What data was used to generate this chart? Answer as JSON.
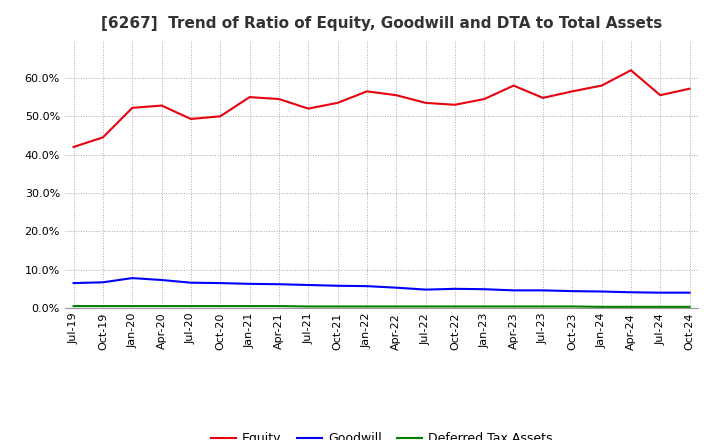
{
  "title": "[6267]  Trend of Ratio of Equity, Goodwill and DTA to Total Assets",
  "x_labels": [
    "Jul-19",
    "Oct-19",
    "Jan-20",
    "Apr-20",
    "Jul-20",
    "Oct-20",
    "Jan-21",
    "Apr-21",
    "Jul-21",
    "Oct-21",
    "Jan-22",
    "Apr-22",
    "Jul-22",
    "Oct-22",
    "Jan-23",
    "Apr-23",
    "Jul-23",
    "Oct-23",
    "Jan-24",
    "Apr-24",
    "Jul-24",
    "Oct-24"
  ],
  "equity": [
    0.42,
    0.445,
    0.522,
    0.528,
    0.493,
    0.5,
    0.55,
    0.545,
    0.52,
    0.535,
    0.565,
    0.555,
    0.535,
    0.53,
    0.545,
    0.58,
    0.548,
    0.565,
    0.58,
    0.62,
    0.555,
    0.572
  ],
  "goodwill": [
    0.065,
    0.067,
    0.078,
    0.073,
    0.066,
    0.065,
    0.063,
    0.062,
    0.06,
    0.058,
    0.057,
    0.053,
    0.048,
    0.05,
    0.049,
    0.046,
    0.046,
    0.044,
    0.043,
    0.041,
    0.04,
    0.04
  ],
  "dta": [
    0.005,
    0.005,
    0.005,
    0.005,
    0.005,
    0.005,
    0.005,
    0.005,
    0.004,
    0.004,
    0.004,
    0.004,
    0.004,
    0.004,
    0.004,
    0.004,
    0.004,
    0.004,
    0.003,
    0.003,
    0.003,
    0.003
  ],
  "equity_color": "#e8000e",
  "goodwill_color": "#0000ff",
  "dta_color": "#008000",
  "background_color": "#ffffff",
  "grid_color": "#aaaaaa",
  "ylim": [
    0.0,
    0.7
  ],
  "yticks": [
    0.0,
    0.1,
    0.2,
    0.3,
    0.4,
    0.5,
    0.6
  ],
  "legend_labels": [
    "Equity",
    "Goodwill",
    "Deferred Tax Assets"
  ],
  "title_fontsize": 11,
  "tick_fontsize": 8,
  "legend_fontsize": 9
}
